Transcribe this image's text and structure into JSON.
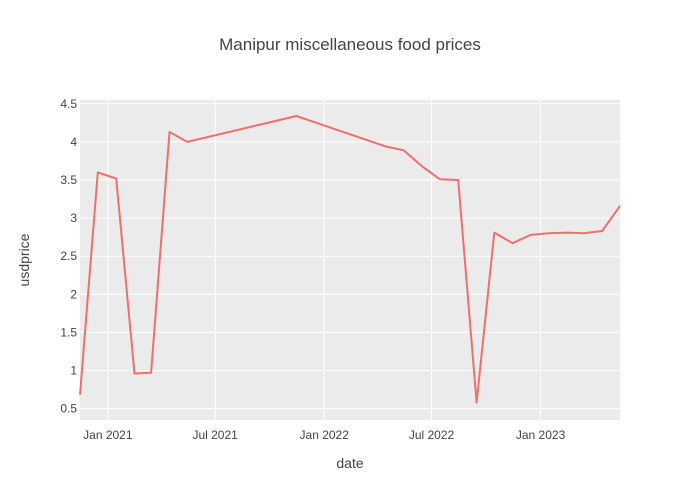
{
  "chart_data": {
    "type": "line",
    "title": "Manipur miscellaneous food prices",
    "xlabel": "date",
    "ylabel": "usdprice",
    "xlim": [
      "2020-11-15",
      "2023-05-15"
    ],
    "ylim": [
      0.35,
      4.55
    ],
    "x_ticks": [
      {
        "date": "2021-01-01",
        "label": "Jan 2021"
      },
      {
        "date": "2021-07-01",
        "label": "Jul 2021"
      },
      {
        "date": "2022-01-01",
        "label": "Jan 2022"
      },
      {
        "date": "2022-07-01",
        "label": "Jul 2022"
      },
      {
        "date": "2023-01-01",
        "label": "Jan 2023"
      }
    ],
    "y_ticks": [
      0.5,
      1,
      1.5,
      2,
      2.5,
      3,
      3.5,
      4,
      4.5
    ],
    "y_tick_labels": [
      "0.5",
      "1",
      "1.5",
      "2",
      "2.5",
      "3",
      "3.5",
      "4",
      "4.5"
    ],
    "grid": true,
    "plot_background": "#ebebeb",
    "series": [
      {
        "color": "#ef6f6c",
        "x": [
          "2020-11-15",
          "2020-12-15",
          "2021-01-15",
          "2021-02-15",
          "2021-03-15",
          "2021-04-15",
          "2021-05-15",
          "2021-11-15",
          "2022-04-15",
          "2022-05-15",
          "2022-06-15",
          "2022-07-15",
          "2022-08-15",
          "2022-09-15",
          "2022-10-15",
          "2022-11-15",
          "2022-12-15",
          "2023-01-15",
          "2023-02-15",
          "2023-03-15",
          "2023-04-15",
          "2023-05-15"
        ],
        "y": [
          0.68,
          3.6,
          3.52,
          0.96,
          0.97,
          4.13,
          4.0,
          4.34,
          3.94,
          3.89,
          3.68,
          3.51,
          3.5,
          0.58,
          2.81,
          2.67,
          2.78,
          2.8,
          2.81,
          2.8,
          2.83,
          3.16
        ]
      }
    ]
  }
}
